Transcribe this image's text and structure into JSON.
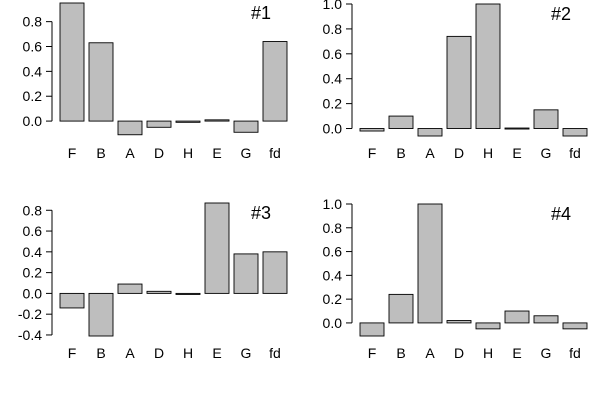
{
  "chart_data": [
    {
      "type": "bar",
      "title": "",
      "panel_label": "#1",
      "categories": [
        "F",
        "B",
        "A",
        "D",
        "H",
        "E",
        "G",
        "fd"
      ],
      "values": [
        0.95,
        0.63,
        -0.11,
        -0.05,
        -0.01,
        0.01,
        -0.09,
        0.64
      ],
      "yticks": [
        "0.0",
        "0.2",
        "0.4",
        "0.6",
        "0.8"
      ],
      "ylim": [
        -0.12,
        0.95
      ],
      "xlabel": "",
      "ylabel": "",
      "grid": false,
      "legend": "none"
    },
    {
      "type": "bar",
      "title": "",
      "panel_label": "#2",
      "categories": [
        "F",
        "B",
        "A",
        "D",
        "H",
        "E",
        "G",
        "fd"
      ],
      "values": [
        -0.02,
        0.1,
        -0.06,
        0.74,
        1.0,
        0.0,
        0.15,
        -0.06
      ],
      "yticks": [
        "0.0",
        "0.2",
        "0.4",
        "0.6",
        "0.8",
        "1.0"
      ],
      "ylim": [
        -0.06,
        1.0
      ],
      "xlabel": "",
      "ylabel": "",
      "grid": false,
      "legend": "none"
    },
    {
      "type": "bar",
      "title": "",
      "panel_label": "#3",
      "categories": [
        "F",
        "B",
        "A",
        "D",
        "H",
        "E",
        "G",
        "fd"
      ],
      "values": [
        -0.14,
        -0.41,
        0.09,
        0.02,
        -0.01,
        0.87,
        0.38,
        0.4
      ],
      "yticks": [
        "-0.4",
        "-0.2",
        "0.0",
        "0.2",
        "0.4",
        "0.6",
        "0.8"
      ],
      "ylim": [
        -0.41,
        0.87
      ],
      "xlabel": "",
      "ylabel": "",
      "grid": false,
      "legend": "none"
    },
    {
      "type": "bar",
      "title": "",
      "panel_label": "#4",
      "categories": [
        "F",
        "B",
        "A",
        "D",
        "H",
        "E",
        "G",
        "fd"
      ],
      "values": [
        -0.11,
        0.24,
        1.0,
        0.02,
        -0.05,
        0.1,
        0.06,
        -0.05
      ],
      "yticks": [
        "0.0",
        "0.2",
        "0.4",
        "0.6",
        "0.8",
        "1.0"
      ],
      "ylim": [
        -0.11,
        1.0
      ],
      "xlabel": "",
      "ylabel": "",
      "grid": false,
      "legend": "none"
    }
  ]
}
